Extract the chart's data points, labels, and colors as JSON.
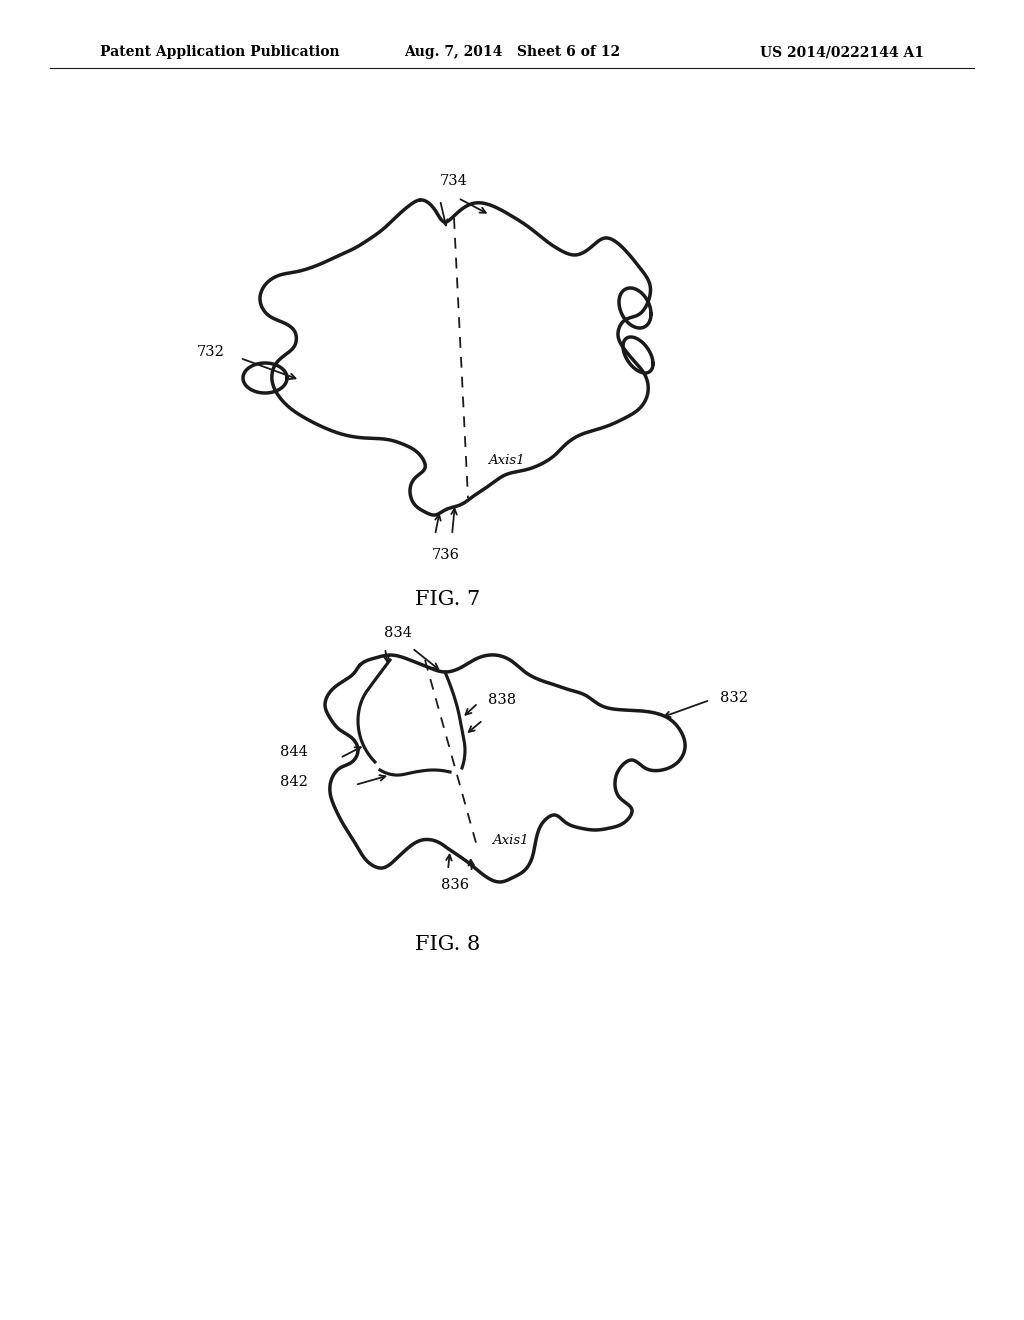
{
  "background_color": "#ffffff",
  "header_left": "Patent Application Publication",
  "header_center": "Aug. 7, 2014   Sheet 6 of 12",
  "header_right": "US 2014/0222144 A1",
  "fig7_caption": "FIG. 7",
  "fig8_caption": "FIG. 8",
  "line_color": "#1a1a1a",
  "line_width": 2.5,
  "text_color": "#000000",
  "header_fontsize": 10,
  "label_fontsize": 10.5,
  "caption_fontsize": 15
}
